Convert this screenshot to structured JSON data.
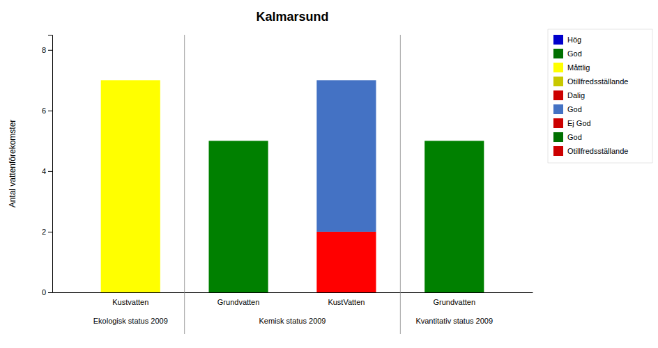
{
  "chart_data": {
    "type": "bar",
    "title": "Kalmarsund",
    "ylabel": "Antal vattenförekomster",
    "categories": [
      "Kustvatten",
      "Grundvatten",
      "KustVatten",
      "Grundvatten"
    ],
    "category_groups": [
      "Ekologisk status 2009",
      "Kemisk status 2009",
      "Kemisk status 2009",
      "Kvantitativ status 2009"
    ],
    "series": [
      {
        "values": [
          7,
          5,
          2,
          5
        ],
        "colors": [
          "#ffff00",
          "#008000",
          "#ff0000",
          "#008000"
        ]
      },
      {
        "values": [
          null,
          null,
          5,
          null
        ],
        "colors": [
          null,
          null,
          "#4472c4",
          null
        ]
      }
    ],
    "stacked": true,
    "ylim": [
      0,
      8.5
    ],
    "yticks": [
      0,
      2,
      4,
      6,
      8
    ],
    "grid": false,
    "legend": "right",
    "legend_entries": [
      {
        "label": "Hög",
        "color": "#0000cc"
      },
      {
        "label": "God",
        "color": "#007000"
      },
      {
        "label": "Måttlig",
        "color": "#ffff00"
      },
      {
        "label": "Otillfredsställande",
        "color": "#c8c800"
      },
      {
        "label": "Dalig",
        "color": "#cc0000"
      },
      {
        "label": "God",
        "color": "#4472c4"
      },
      {
        "label": "Ej God",
        "color": "#cc0000"
      },
      {
        "label": "God",
        "color": "#007000"
      },
      {
        "label": "Otillfredsställande",
        "color": "#cc0000"
      }
    ]
  }
}
